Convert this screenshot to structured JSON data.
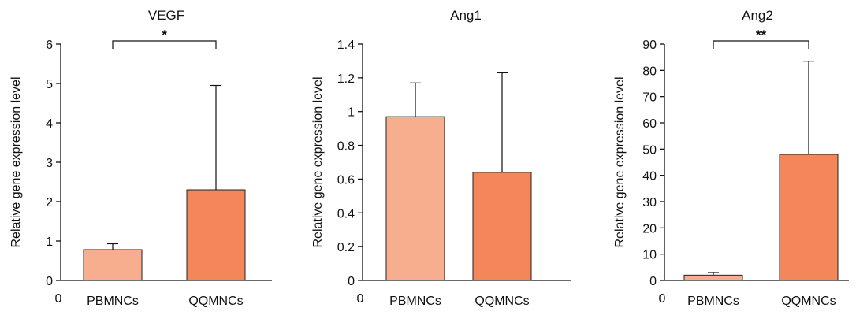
{
  "chart_data": [
    {
      "type": "bar",
      "title": "VEGF",
      "ylabel": "Relative gene expression level",
      "x_origin_label": "0",
      "categories": [
        "PBMNCs",
        "QQMNCs"
      ],
      "values": [
        0.78,
        2.3
      ],
      "error_upper": [
        0.93,
        4.95
      ],
      "ylim": [
        0,
        6
      ],
      "yticks": [
        0,
        1,
        2,
        3,
        4,
        5,
        6
      ],
      "significance": {
        "label": "*",
        "between": [
          0,
          1
        ]
      },
      "grid": false,
      "colors": [
        "#f7ae8f",
        "#f4875a"
      ]
    },
    {
      "type": "bar",
      "title": "Ang1",
      "ylabel": "Relative gene expression level",
      "x_origin_label": "0",
      "categories": [
        "PBMNCs",
        "QQMNCs"
      ],
      "values": [
        0.97,
        0.64
      ],
      "error_upper": [
        1.17,
        1.23
      ],
      "ylim": [
        0,
        1.4
      ],
      "yticks": [
        0,
        0.2,
        0.4,
        0.6,
        0.8,
        1,
        1.2,
        1.4
      ],
      "significance": null,
      "grid": false,
      "colors": [
        "#f7ae8f",
        "#f4875a"
      ]
    },
    {
      "type": "bar",
      "title": "Ang2",
      "ylabel": "Relative gene expression level",
      "x_origin_label": "0",
      "categories": [
        "PBMNCs",
        "QQMNCs"
      ],
      "values": [
        2.0,
        48.0
      ],
      "error_upper": [
        3.0,
        83.5
      ],
      "ylim": [
        0,
        90
      ],
      "yticks": [
        0,
        10,
        20,
        30,
        40,
        50,
        60,
        70,
        80,
        90
      ],
      "significance": {
        "label": "**",
        "between": [
          0,
          1
        ]
      },
      "grid": false,
      "colors": [
        "#f7ae8f",
        "#f4875a"
      ]
    }
  ]
}
